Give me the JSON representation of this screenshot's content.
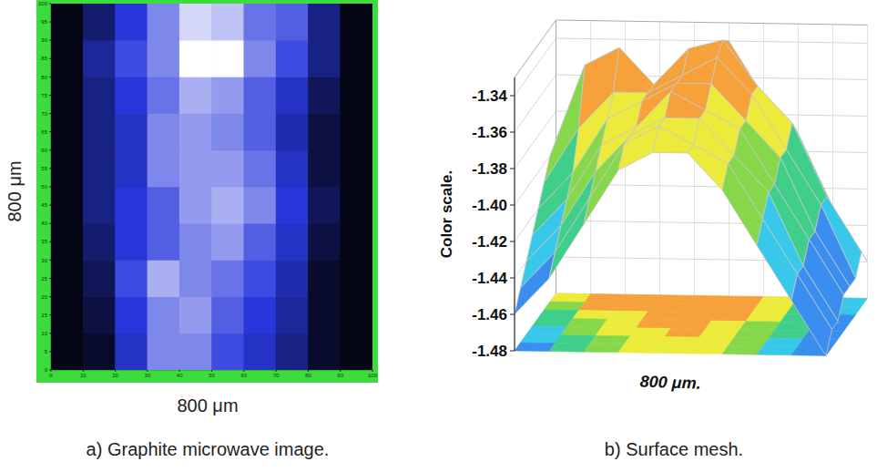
{
  "chart_data": [
    {
      "type": "heatmap",
      "title": "a) Graphite microwave image.",
      "xlabel": "800 μm",
      "ylabel": "800 μm",
      "xlim": [
        0,
        100
      ],
      "ylim": [
        0,
        100
      ],
      "xticks": [
        0,
        10,
        20,
        30,
        40,
        50,
        60,
        70,
        80,
        90,
        100
      ],
      "yticks": [
        0,
        5,
        10,
        15,
        20,
        25,
        30,
        35,
        40,
        45,
        50,
        55,
        60,
        65,
        70,
        75,
        80,
        85,
        90,
        95,
        100
      ],
      "cells": [
        [
          0.05,
          0.1,
          0.45,
          0.7,
          0.7,
          0.55,
          0.45,
          0.3,
          0.1,
          0.05
        ],
        [
          0.05,
          0.15,
          0.5,
          0.7,
          0.75,
          0.6,
          0.5,
          0.35,
          0.1,
          0.05
        ],
        [
          0.05,
          0.2,
          0.55,
          0.8,
          0.7,
          0.65,
          0.55,
          0.4,
          0.1,
          0.05
        ],
        [
          0.05,
          0.25,
          0.5,
          0.6,
          0.7,
          0.75,
          0.6,
          0.45,
          0.15,
          0.05
        ],
        [
          0.05,
          0.3,
          0.5,
          0.6,
          0.75,
          0.8,
          0.7,
          0.5,
          0.2,
          0.05
        ],
        [
          0.05,
          0.3,
          0.45,
          0.7,
          0.75,
          0.75,
          0.65,
          0.45,
          0.15,
          0.05
        ],
        [
          0.05,
          0.3,
          0.45,
          0.7,
          0.75,
          0.7,
          0.6,
          0.4,
          0.15,
          0.05
        ],
        [
          0.05,
          0.3,
          0.5,
          0.65,
          0.8,
          0.75,
          0.6,
          0.45,
          0.2,
          0.05
        ],
        [
          0.05,
          0.35,
          0.55,
          0.7,
          1.0,
          1.0,
          0.7,
          0.55,
          0.3,
          0.05
        ],
        [
          0.05,
          0.25,
          0.5,
          0.7,
          0.9,
          0.85,
          0.65,
          0.6,
          0.3,
          0.05
        ]
      ]
    },
    {
      "type": "surface",
      "title": "b) Surface mesh.",
      "xlabel": "800 μm.",
      "zlabel": "Color scale.",
      "zlim": [
        -1.48,
        -1.33
      ],
      "zticks": [
        -1.48,
        -1.46,
        -1.44,
        -1.42,
        {
          "value": -1.4,
          "label": "-1.40"
        },
        -1.38,
        -1.36,
        -1.34
      ],
      "z": [
        [
          -1.46,
          -1.44,
          -1.41,
          -1.38,
          -1.37,
          -1.37,
          -1.39,
          -1.42,
          -1.45,
          -1.48
        ],
        [
          -1.45,
          -1.43,
          -1.4,
          -1.37,
          -1.36,
          -1.37,
          -1.38,
          -1.41,
          -1.44,
          -1.47
        ],
        [
          -1.44,
          -1.42,
          -1.39,
          -1.37,
          -1.36,
          -1.36,
          -1.38,
          -1.4,
          -1.44,
          -1.47
        ],
        [
          -1.43,
          -1.41,
          -1.38,
          -1.37,
          -1.35,
          -1.36,
          -1.37,
          -1.4,
          -1.43,
          -1.46
        ],
        [
          -1.42,
          -1.4,
          -1.37,
          -1.36,
          -1.35,
          -1.35,
          -1.37,
          -1.39,
          -1.43,
          -1.46
        ],
        [
          -1.41,
          -1.38,
          -1.36,
          -1.36,
          -1.35,
          -1.34,
          -1.36,
          -1.39,
          -1.42,
          -1.46
        ],
        [
          -1.4,
          -1.35,
          -1.34,
          -1.36,
          -1.34,
          -1.335,
          -1.36,
          -1.38,
          -1.42,
          -1.45
        ],
        [
          -1.41,
          -1.36,
          -1.35,
          -1.37,
          -1.35,
          -1.34,
          -1.37,
          -1.39,
          -1.43,
          -1.46
        ]
      ]
    }
  ]
}
